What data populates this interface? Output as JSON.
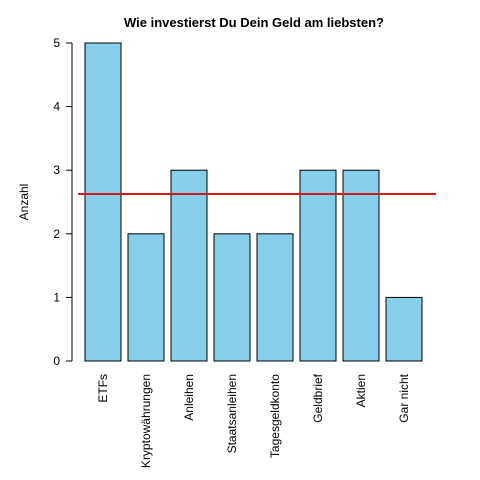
{
  "chart_data": {
    "type": "bar",
    "title": "Wie investierst Du Dein Geld am liebsten?",
    "xlabel": "",
    "ylabel": "Anzahl",
    "categories": [
      "ETFs",
      "Kryptowährungen",
      "Anleihen",
      "Staatsanleihen",
      "Tagesgeldkonto",
      "Geldbrief",
      "Aktien",
      "Gar nicht"
    ],
    "values": [
      5,
      2,
      3,
      2,
      2,
      3,
      3,
      1
    ],
    "ylim": [
      0,
      5
    ],
    "yticks": [
      0,
      1,
      2,
      3,
      4,
      5
    ],
    "reference_line": {
      "value": 2.625,
      "color": "#d01c1c"
    },
    "bar_color": "#87ceeb",
    "bar_edge_color": "#000000",
    "grid": false,
    "legend": "none"
  }
}
